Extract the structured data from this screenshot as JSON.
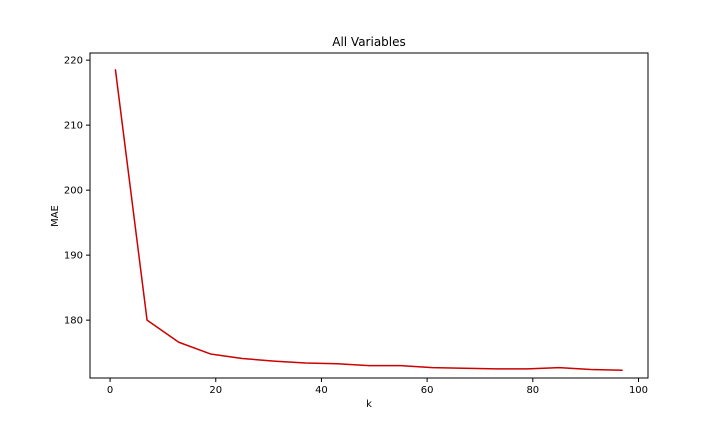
{
  "chart_data": {
    "type": "line",
    "title": "All Variables",
    "xlabel": "k",
    "ylabel": "MAE",
    "xlim": [
      -3.8,
      101.8
    ],
    "ylim": [
      171.1,
      221.1
    ],
    "x_ticks": [
      0,
      20,
      40,
      60,
      80,
      100
    ],
    "y_ticks": [
      180,
      190,
      200,
      210,
      220
    ],
    "grid": false,
    "series": [
      {
        "color": "#cc0000",
        "x": [
          1,
          7,
          13,
          19,
          25,
          31,
          37,
          43,
          49,
          55,
          61,
          67,
          73,
          79,
          85,
          91,
          97
        ],
        "y": [
          218.6,
          180.0,
          176.6,
          174.8,
          174.1,
          173.7,
          173.4,
          173.3,
          173.0,
          173.0,
          172.7,
          172.6,
          172.5,
          172.5,
          172.7,
          172.4,
          172.3
        ]
      }
    ]
  }
}
